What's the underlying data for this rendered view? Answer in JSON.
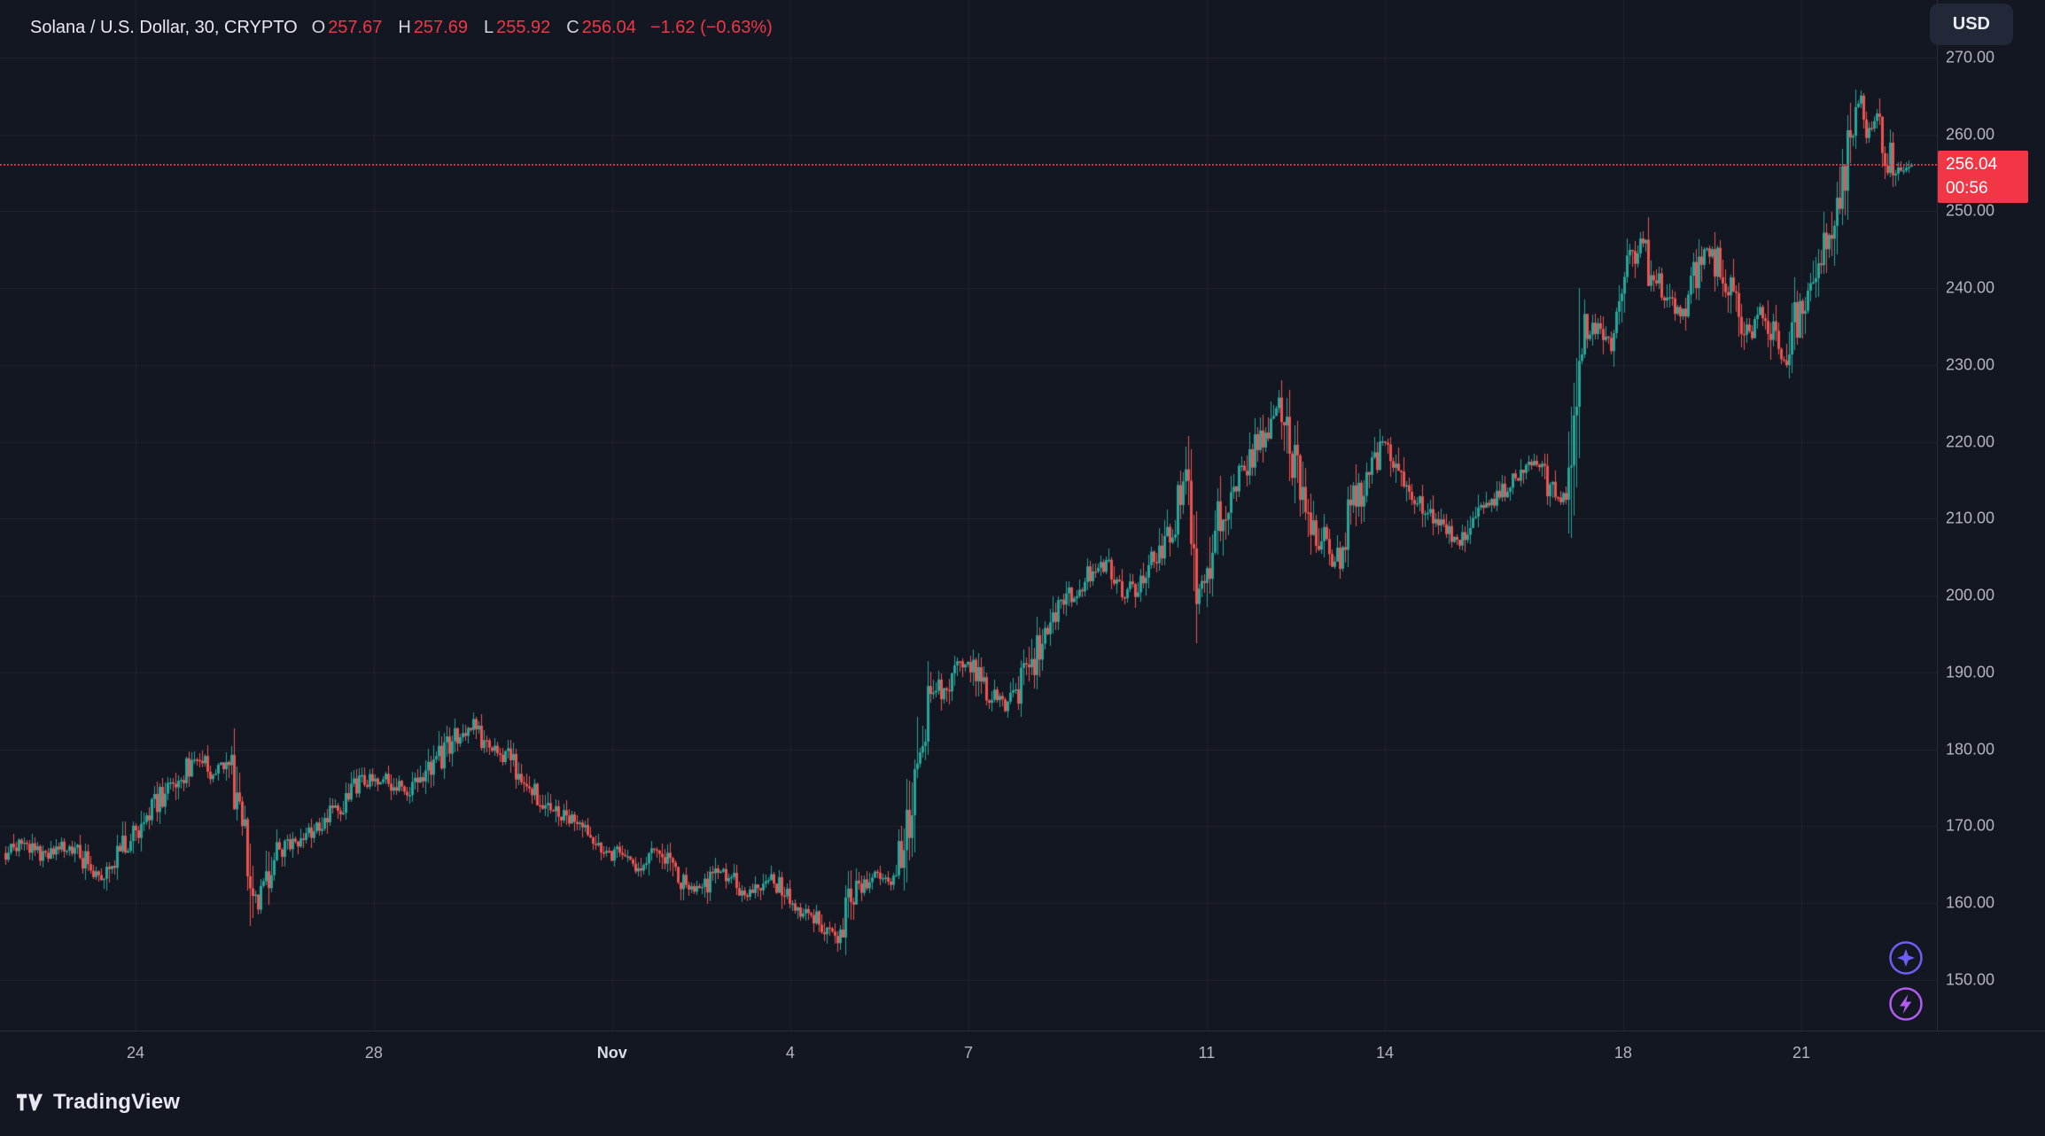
{
  "header": {
    "symbol_text": "Solana / U.S. Dollar, 30, CRYPTO",
    "open_label": "O",
    "open_value": "257.67",
    "high_label": "H",
    "high_value": "257.69",
    "low_label": "L",
    "low_value": "255.92",
    "close_label": "C",
    "close_value": "256.04",
    "change_text": "−1.62 (−0.63%)"
  },
  "currency_button": {
    "label": "USD"
  },
  "price_badge": {
    "price": "256.04",
    "countdown": "00:56"
  },
  "footer": {
    "logo_text": "TradingView"
  },
  "side_icons": [
    {
      "name": "sparkle-icon",
      "color": "#6e5ef6"
    },
    {
      "name": "lightning-icon",
      "color": "#b35bf2"
    }
  ],
  "chart_data": {
    "type": "candlestick",
    "title": "Solana / U.S. Dollar, 30, CRYPTO",
    "symbol": "Solana / U.S. Dollar",
    "interval": "30",
    "exchange": "CRYPTO",
    "ohlc": {
      "open": 257.67,
      "high": 257.69,
      "low": 255.92,
      "close": 256.04
    },
    "change": -1.62,
    "change_pct": -0.63,
    "last_price": 256.04,
    "countdown": "00:56",
    "ylim": [
      143.4,
      277.5
    ],
    "grid": true,
    "y_ticks": [
      {
        "v": 270,
        "label": "270.00"
      },
      {
        "v": 260,
        "label": "260.00"
      },
      {
        "v": 250,
        "label": "250.00"
      },
      {
        "v": 240,
        "label": "240.00"
      },
      {
        "v": 230,
        "label": "230.00"
      },
      {
        "v": 220,
        "label": "220.00"
      },
      {
        "v": 210,
        "label": "210.00"
      },
      {
        "v": 200,
        "label": "200.00"
      },
      {
        "v": 190,
        "label": "190.00"
      },
      {
        "v": 180,
        "label": "180.00"
      },
      {
        "v": 170,
        "label": "170.00"
      },
      {
        "v": 160,
        "label": "160.00"
      },
      {
        "v": 150,
        "label": "150.00"
      }
    ],
    "x_ticks": [
      {
        "text": "24",
        "t": 0.07,
        "bold": false
      },
      {
        "text": "28",
        "t": 0.193,
        "bold": false
      },
      {
        "text": "Nov",
        "t": 0.316,
        "bold": true
      },
      {
        "text": "4",
        "t": 0.408,
        "bold": false
      },
      {
        "text": "7",
        "t": 0.5,
        "bold": false
      },
      {
        "text": "11",
        "t": 0.623,
        "bold": false
      },
      {
        "text": "14",
        "t": 0.715,
        "bold": false
      },
      {
        "text": "18",
        "t": 0.838,
        "bold": false
      },
      {
        "text": "21",
        "t": 0.93,
        "bold": false
      }
    ],
    "price_path": [
      [
        0.0,
        166.5
      ],
      [
        0.008,
        168
      ],
      [
        0.02,
        166
      ],
      [
        0.034,
        167.5
      ],
      [
        0.05,
        163.5
      ],
      [
        0.06,
        167
      ],
      [
        0.075,
        172
      ],
      [
        0.088,
        175.5
      ],
      [
        0.1,
        179
      ],
      [
        0.108,
        176.5
      ],
      [
        0.117,
        178
      ],
      [
        0.125,
        170
      ],
      [
        0.132,
        160.5
      ],
      [
        0.14,
        166
      ],
      [
        0.158,
        169
      ],
      [
        0.172,
        172
      ],
      [
        0.185,
        175.5
      ],
      [
        0.198,
        176.5
      ],
      [
        0.21,
        174
      ],
      [
        0.222,
        177
      ],
      [
        0.235,
        181.5
      ],
      [
        0.245,
        183
      ],
      [
        0.252,
        180.5
      ],
      [
        0.262,
        179
      ],
      [
        0.272,
        176
      ],
      [
        0.285,
        172.5
      ],
      [
        0.3,
        169.5
      ],
      [
        0.315,
        167
      ],
      [
        0.33,
        164.5
      ],
      [
        0.34,
        167.5
      ],
      [
        0.352,
        163.5
      ],
      [
        0.362,
        161.5
      ],
      [
        0.375,
        164.5
      ],
      [
        0.388,
        161
      ],
      [
        0.4,
        163.5
      ],
      [
        0.412,
        159.5
      ],
      [
        0.424,
        158
      ],
      [
        0.435,
        156
      ],
      [
        0.444,
        161.5
      ],
      [
        0.455,
        164
      ],
      [
        0.464,
        163
      ],
      [
        0.47,
        167
      ],
      [
        0.476,
        175
      ],
      [
        0.482,
        186
      ],
      [
        0.492,
        188.5
      ],
      [
        0.503,
        192
      ],
      [
        0.513,
        188
      ],
      [
        0.524,
        185.5
      ],
      [
        0.534,
        189.5
      ],
      [
        0.545,
        196
      ],
      [
        0.557,
        200.5
      ],
      [
        0.568,
        203
      ],
      [
        0.578,
        204
      ],
      [
        0.585,
        199.5
      ],
      [
        0.594,
        202
      ],
      [
        0.603,
        205
      ],
      [
        0.612,
        210.5
      ],
      [
        0.618,
        215
      ],
      [
        0.623,
        204
      ],
      [
        0.627,
        200.5
      ],
      [
        0.634,
        209
      ],
      [
        0.642,
        214
      ],
      [
        0.652,
        218.5
      ],
      [
        0.66,
        222
      ],
      [
        0.666,
        225
      ],
      [
        0.673,
        219
      ],
      [
        0.681,
        212
      ],
      [
        0.69,
        206.5
      ],
      [
        0.696,
        203.5
      ],
      [
        0.703,
        210
      ],
      [
        0.712,
        215.5
      ],
      [
        0.722,
        220
      ],
      [
        0.73,
        215.5
      ],
      [
        0.74,
        212
      ],
      [
        0.75,
        209
      ],
      [
        0.76,
        207
      ],
      [
        0.77,
        210.5
      ],
      [
        0.78,
        213
      ],
      [
        0.79,
        215.5
      ],
      [
        0.8,
        217.5
      ],
      [
        0.808,
        214
      ],
      [
        0.814,
        211.5
      ],
      [
        0.818,
        214.5
      ],
      [
        0.8205,
        212
      ],
      [
        0.8235,
        238
      ],
      [
        0.828,
        233
      ],
      [
        0.834,
        236.5
      ],
      [
        0.84,
        232.5
      ],
      [
        0.847,
        239
      ],
      [
        0.851,
        243
      ],
      [
        0.856,
        246
      ],
      [
        0.862,
        241.5
      ],
      [
        0.871,
        239
      ],
      [
        0.877,
        236.5
      ],
      [
        0.885,
        242.5
      ],
      [
        0.891,
        245.5
      ],
      [
        0.9,
        241
      ],
      [
        0.907,
        237.5
      ],
      [
        0.913,
        234
      ],
      [
        0.919,
        237.5
      ],
      [
        0.925,
        233.5
      ],
      [
        0.931,
        230.5
      ],
      [
        0.94,
        238.5
      ],
      [
        0.949,
        244
      ],
      [
        0.956,
        248.5
      ],
      [
        0.963,
        255.5
      ],
      [
        0.968,
        261.5
      ],
      [
        0.971,
        264.5
      ],
      [
        0.9745,
        259
      ],
      [
        0.979,
        262
      ],
      [
        0.984,
        258
      ],
      [
        0.99,
        255.5
      ],
      [
        1.0,
        256.04
      ]
    ],
    "colors": {
      "background": "#131722",
      "up": "#26a69a",
      "down": "#ef5350",
      "last_price_line": "#f23645",
      "grid": "rgba(255,255,255,0.05)"
    }
  }
}
